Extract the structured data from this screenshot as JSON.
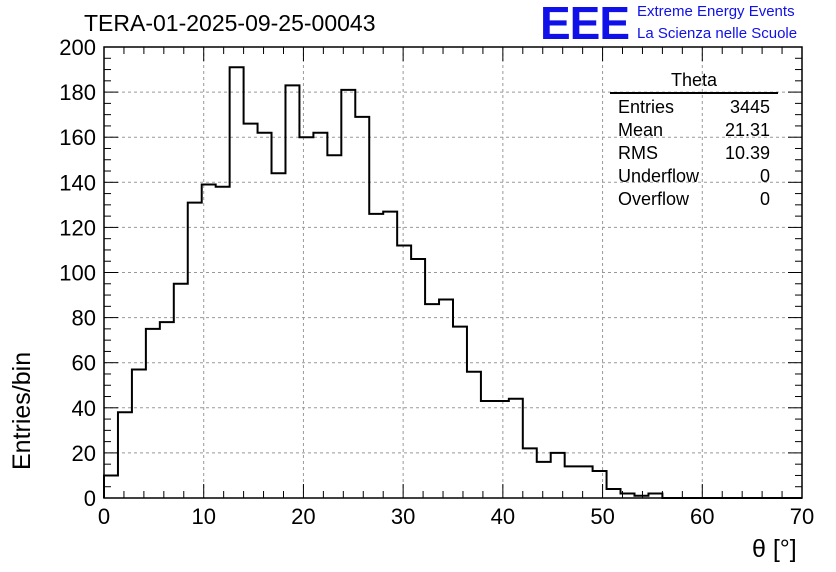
{
  "header": {
    "run_title": "TERA-01-2025-09-25-00043",
    "logo_text": "EEE",
    "logo_line1": "Extreme Energy Events",
    "logo_line2": "La Scienza nelle Scuole"
  },
  "stats_box": {
    "title": "Theta",
    "rows": [
      {
        "label": "Entries",
        "value": "3445"
      },
      {
        "label": "Mean",
        "value": "21.31"
      },
      {
        "label": "RMS",
        "value": "10.39"
      },
      {
        "label": "Underflow",
        "value": "0"
      },
      {
        "label": "Overflow",
        "value": "0"
      }
    ]
  },
  "chart_data": {
    "type": "histogram",
    "title": "TERA-01-2025-09-25-00043",
    "xlabel": "θ [°]",
    "ylabel": "Entries/bin",
    "xlim": [
      0,
      70
    ],
    "ylim": [
      0,
      200
    ],
    "grid": true,
    "bin_width": 1.4,
    "x_ticks": [
      0,
      10,
      20,
      30,
      40,
      50,
      60,
      70
    ],
    "y_ticks": [
      0,
      20,
      40,
      60,
      80,
      100,
      120,
      140,
      160,
      180,
      200
    ],
    "values": [
      10,
      38,
      57,
      75,
      78,
      95,
      131,
      139,
      138,
      191,
      166,
      162,
      144,
      183,
      160,
      162,
      152,
      181,
      169,
      126,
      127,
      112,
      106,
      86,
      88,
      76,
      56,
      43,
      43,
      44,
      22,
      16,
      20,
      14,
      14,
      12,
      4,
      2,
      1,
      2,
      0,
      0,
      0,
      0,
      0,
      0,
      0,
      0,
      0,
      0
    ],
    "line_color": "#000000",
    "grid_color": "#999999"
  }
}
